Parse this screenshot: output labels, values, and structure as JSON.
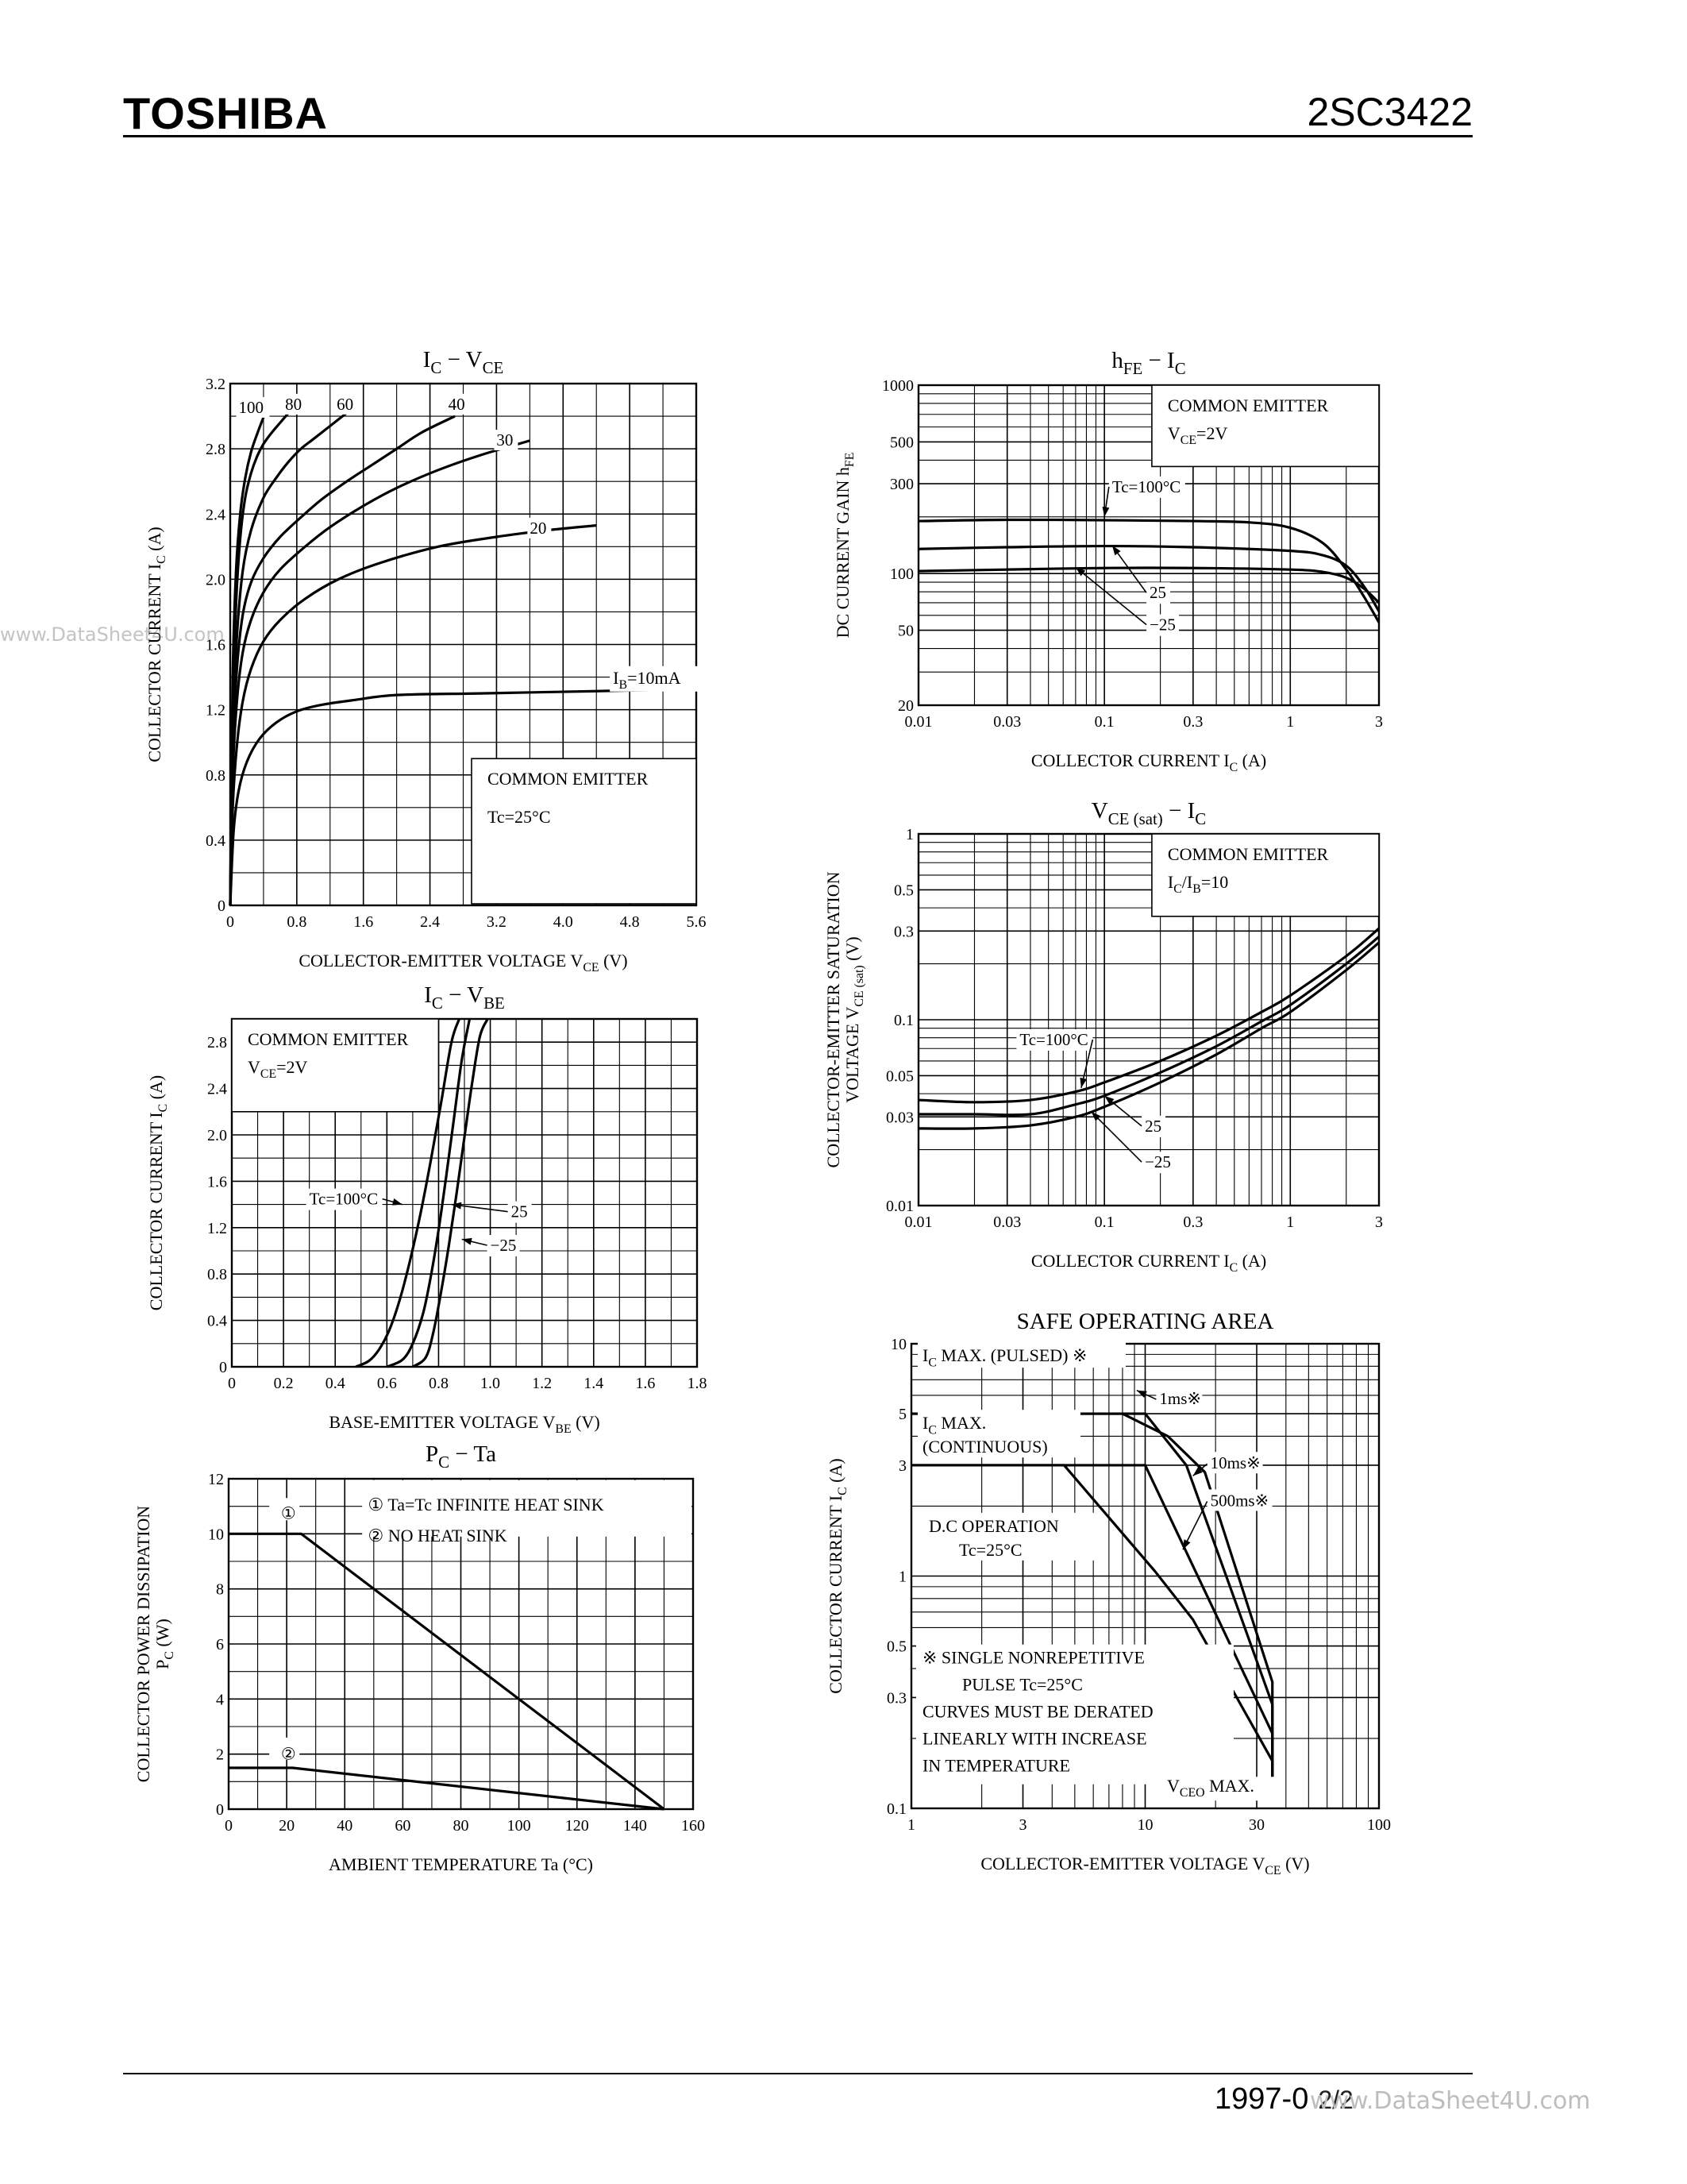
{
  "header": {
    "brand": "TOSHIBA",
    "part_number": "2SC3422"
  },
  "footer": {
    "date": "1997-0",
    "page": "2/2"
  },
  "watermark": {
    "left": "www.DataSheet4U.com",
    "bottom": "www.DataSheet4U.com"
  },
  "chart_data": [
    {
      "id": "ic_vce",
      "type": "line",
      "title_main": "I",
      "title_sub": "C",
      "title_mid": " − V",
      "title_sub2": "CE",
      "xlabel": "COLLECTOR-EMITTER VOLTAGE   V",
      "xlabel_sub": "CE",
      "xlabel_unit": "   (V)",
      "ylabel": "COLLECTOR CURRENT   I",
      "ylabel_sub": "C",
      "ylabel_unit": "   (A)",
      "x_scale": "linear",
      "y_scale": "linear",
      "xlim": [
        0,
        5.6
      ],
      "ylim": [
        0,
        3.2
      ],
      "xticks": [
        0,
        0.8,
        1.6,
        2.4,
        3.2,
        4.0,
        4.8,
        5.6
      ],
      "xtick_labels": [
        "0",
        "0.8",
        "1.6",
        "2.4",
        "3.2",
        "4.0",
        "4.8",
        "5.6"
      ],
      "yticks": [
        0,
        0.4,
        0.8,
        1.2,
        1.6,
        2.0,
        2.4,
        2.8,
        3.2
      ],
      "ytick_labels": [
        "0",
        "0.4",
        "0.8",
        "1.2",
        "1.6",
        "2.0",
        "2.4",
        "2.8",
        "3.2"
      ],
      "grid_minor_x": 0.4,
      "grid_minor_y": 0.2,
      "info_box": {
        "lines": [
          "COMMON EMITTER",
          "Tc=25°C"
        ],
        "corner": "bottom-right",
        "x0": 2.9,
        "y1": 0.9
      },
      "series": [
        {
          "name": "IB=10mA",
          "label": "I",
          "label_sub": "B",
          "label_rest": "=10mA",
          "label_at": [
            4.6,
            1.36
          ],
          "x": [
            0,
            0.04,
            0.1,
            0.2,
            0.35,
            0.55,
            0.8,
            1.1,
            1.5,
            2.0,
            3.0,
            4.0,
            5.0,
            5.6
          ],
          "y": [
            0,
            0.45,
            0.7,
            0.88,
            1.02,
            1.12,
            1.19,
            1.23,
            1.26,
            1.29,
            1.3,
            1.31,
            1.32,
            1.33
          ]
        },
        {
          "name": "20",
          "label": "20",
          "label_at": [
            3.6,
            2.28
          ],
          "x": [
            0,
            0.03,
            0.08,
            0.15,
            0.25,
            0.4,
            0.6,
            0.9,
            1.3,
            1.8,
            2.5,
            3.2,
            3.8,
            4.4
          ],
          "y": [
            0,
            0.6,
            0.98,
            1.25,
            1.45,
            1.62,
            1.75,
            1.88,
            2.0,
            2.1,
            2.2,
            2.26,
            2.3,
            2.33
          ]
        },
        {
          "name": "30",
          "label": "30",
          "label_at": [
            3.2,
            2.82
          ],
          "x": [
            0,
            0.03,
            0.08,
            0.15,
            0.25,
            0.4,
            0.6,
            0.9,
            1.2,
            1.6,
            2.0,
            2.5,
            3.0,
            3.6
          ],
          "y": [
            0,
            0.8,
            1.25,
            1.55,
            1.75,
            1.92,
            2.06,
            2.2,
            2.32,
            2.45,
            2.56,
            2.67,
            2.76,
            2.85
          ]
        },
        {
          "name": "40",
          "label": "40",
          "label_at": [
            2.62,
            3.04
          ],
          "x": [
            0,
            0.03,
            0.08,
            0.15,
            0.25,
            0.4,
            0.6,
            0.85,
            1.1,
            1.4,
            1.7,
            2.0,
            2.3,
            2.7
          ],
          "y": [
            0,
            0.95,
            1.45,
            1.78,
            1.98,
            2.13,
            2.26,
            2.38,
            2.49,
            2.6,
            2.7,
            2.8,
            2.9,
            3.0
          ]
        },
        {
          "name": "60",
          "label": "60",
          "label_at": [
            1.28,
            3.04
          ],
          "x": [
            0,
            0.03,
            0.08,
            0.15,
            0.25,
            0.4,
            0.55,
            0.7,
            0.85,
            1.0,
            1.2,
            1.4
          ],
          "y": [
            0,
            1.1,
            1.65,
            2.05,
            2.3,
            2.5,
            2.62,
            2.72,
            2.8,
            2.86,
            2.94,
            3.02
          ]
        },
        {
          "name": "80",
          "label": "80",
          "label_at": [
            0.66,
            3.04
          ],
          "x": [
            0,
            0.03,
            0.07,
            0.12,
            0.18,
            0.25,
            0.32,
            0.4,
            0.5,
            0.6,
            0.7
          ],
          "y": [
            0,
            1.2,
            1.85,
            2.25,
            2.5,
            2.65,
            2.75,
            2.83,
            2.9,
            2.96,
            3.02
          ]
        },
        {
          "name": "100",
          "label": "100",
          "label_at": [
            0.1,
            3.02
          ],
          "x": [
            0,
            0.03,
            0.07,
            0.12,
            0.18,
            0.25,
            0.33,
            0.42
          ],
          "y": [
            0,
            1.4,
            2.05,
            2.4,
            2.62,
            2.78,
            2.9,
            3.02
          ]
        }
      ]
    },
    {
      "id": "ic_vbe",
      "type": "line",
      "title_main": "I",
      "title_sub": "C",
      "title_mid": " − V",
      "title_sub2": "BE",
      "xlabel": "BASE-EMITTER VOLTAGE   V",
      "xlabel_sub": "BE",
      "xlabel_unit": "   (V)",
      "ylabel": "COLLECTOR CURRENT   I",
      "ylabel_sub": "C",
      "ylabel_unit": "   (A)",
      "x_scale": "linear",
      "y_scale": "linear",
      "xlim": [
        0,
        1.8
      ],
      "ylim": [
        0,
        3.0
      ],
      "xticks": [
        0,
        0.2,
        0.4,
        0.6,
        0.8,
        1.0,
        1.2,
        1.4,
        1.6,
        1.8
      ],
      "xtick_labels": [
        "0",
        "0.2",
        "0.4",
        "0.6",
        "0.8",
        "1.0",
        "1.2",
        "1.4",
        "1.6",
        "1.8"
      ],
      "yticks": [
        0,
        0.4,
        0.8,
        1.2,
        1.6,
        2.0,
        2.4,
        2.8
      ],
      "ytick_labels": [
        "0",
        "0.4",
        "0.8",
        "1.2",
        "1.6",
        "2.0",
        "2.4",
        "2.8"
      ],
      "grid_minor_x": 0.1,
      "grid_minor_y": 0.2,
      "info_box": {
        "lines": [
          "COMMON EMITTER",
          "V|CE|=2V"
        ],
        "corner": "top-left",
        "x1": 0.8,
        "y0": 2.2
      },
      "series": [
        {
          "name": "Tc=100°C",
          "x": [
            0.48,
            0.53,
            0.57,
            0.61,
            0.65,
            0.69,
            0.73,
            0.77,
            0.81,
            0.85,
            0.88
          ],
          "y": [
            0,
            0.05,
            0.15,
            0.32,
            0.58,
            0.92,
            1.32,
            1.78,
            2.28,
            2.8,
            3.0
          ]
        },
        {
          "name": "25",
          "x": [
            0.6,
            0.66,
            0.7,
            0.74,
            0.77,
            0.8,
            0.83,
            0.86,
            0.89,
            0.92
          ],
          "y": [
            0,
            0.06,
            0.2,
            0.46,
            0.78,
            1.18,
            1.65,
            2.15,
            2.65,
            3.0
          ]
        },
        {
          "name": "−25",
          "x": [
            0.7,
            0.75,
            0.78,
            0.81,
            0.84,
            0.87,
            0.9,
            0.93,
            0.96,
            0.99
          ],
          "y": [
            0,
            0.08,
            0.3,
            0.65,
            1.05,
            1.5,
            1.98,
            2.45,
            2.85,
            3.0
          ]
        }
      ],
      "annotations": [
        {
          "text": "Tc=100°C",
          "at": [
            0.3,
            1.4
          ],
          "arrow_to": [
            0.66,
            1.4
          ]
        },
        {
          "text": "25",
          "at": [
            1.08,
            1.29
          ],
          "arrow_to": [
            0.85,
            1.4
          ]
        },
        {
          "text": "−25",
          "at": [
            1.0,
            1.0
          ],
          "arrow_to": [
            0.89,
            1.1
          ]
        }
      ]
    },
    {
      "id": "pc_ta",
      "type": "line",
      "title_main": "P",
      "title_sub": "C",
      "title_mid": " − Ta",
      "xlabel": "AMBIENT TEMPERATURE   Ta   (°C)",
      "ylabel": "COLLECTOR POWER DISSIPATION",
      "ylabel2": "P",
      "ylabel2_sub": "C",
      "ylabel2_unit": "   (W)",
      "x_scale": "linear",
      "y_scale": "linear",
      "xlim": [
        0,
        160
      ],
      "ylim": [
        0,
        12
      ],
      "xticks": [
        0,
        20,
        40,
        60,
        80,
        100,
        120,
        140,
        160
      ],
      "xtick_labels": [
        "0",
        "20",
        "40",
        "60",
        "80",
        "100",
        "120",
        "140",
        "160"
      ],
      "yticks": [
        0,
        2,
        4,
        6,
        8,
        10,
        12
      ],
      "ytick_labels": [
        "0",
        "2",
        "4",
        "6",
        "8",
        "10",
        "12"
      ],
      "grid_minor_x": 10,
      "grid_minor_y": 1,
      "legend": [
        "①   Ta=Tc INFINITE HEAT SINK",
        "②   NO HEAT SINK"
      ],
      "series": [
        {
          "name": "①",
          "x": [
            0,
            25,
            150
          ],
          "y": [
            10,
            10,
            0
          ]
        },
        {
          "name": "②",
          "x": [
            0,
            22,
            150
          ],
          "y": [
            1.5,
            1.5,
            0
          ]
        }
      ]
    },
    {
      "id": "hfe_ic",
      "type": "line",
      "title_main": "h",
      "title_sub": "FE",
      "title_mid": " − I",
      "title_sub2": "C",
      "xlabel": "COLLECTOR CURRENT   I",
      "xlabel_sub": "C",
      "xlabel_unit": "   (A)",
      "ylabel": "DC CURRENT GAIN   h",
      "ylabel_sub": "FE",
      "x_scale": "log",
      "y_scale": "log",
      "xlim": [
        0.01,
        3
      ],
      "ylim": [
        20,
        1000
      ],
      "xticks": [
        0.01,
        0.03,
        0.1,
        0.3,
        1,
        3
      ],
      "xtick_labels": [
        "0.01",
        "0.03",
        "0.1",
        "0.3",
        "1",
        "3"
      ],
      "yticks": [
        20,
        50,
        100,
        300,
        500,
        1000
      ],
      "ytick_labels": [
        "20",
        "50",
        "100",
        "300",
        "500",
        "1000"
      ],
      "info_box": {
        "lines": [
          "COMMON EMITTER",
          "V|CE|=2V"
        ],
        "corner": "top-right",
        "x0": 0.18,
        "y0": 370
      },
      "series": [
        {
          "name": "Tc=100°C",
          "x": [
            0.01,
            0.03,
            0.1,
            0.3,
            0.6,
            1.0,
            1.5,
            2.0,
            2.5,
            3.0
          ],
          "y": [
            190,
            193,
            192,
            190,
            187,
            175,
            145,
            105,
            75,
            55
          ]
        },
        {
          "name": "25",
          "x": [
            0.01,
            0.03,
            0.1,
            0.3,
            1.0,
            1.5,
            2.0,
            2.5,
            3.0
          ],
          "y": [
            135,
            138,
            140,
            138,
            132,
            125,
            110,
            85,
            63
          ]
        },
        {
          "name": "−25",
          "x": [
            0.01,
            0.03,
            0.1,
            0.3,
            1.0,
            1.5,
            2.0,
            2.5,
            3.0
          ],
          "y": [
            103,
            105,
            107,
            107,
            105,
            102,
            95,
            83,
            70
          ]
        }
      ],
      "annotations": [
        {
          "text": "Tc=100°C",
          "at": [
            0.11,
            270
          ],
          "arrow_to": [
            0.1,
            200
          ]
        },
        {
          "text": "25",
          "at": [
            0.175,
            74
          ],
          "arrow_to": [
            0.11,
            141
          ]
        },
        {
          "text": "−25",
          "at": [
            0.175,
            50
          ],
          "arrow_to": [
            0.07,
            108
          ]
        }
      ]
    },
    {
      "id": "vcesat_ic",
      "type": "line",
      "title_main": "V",
      "title_sub": "CE (sat)",
      "title_mid": " − I",
      "title_sub2": "C",
      "xlabel": "COLLECTOR CURRENT   I",
      "xlabel_sub": "C",
      "xlabel_unit": "   (A)",
      "ylabel": "COLLECTOR-EMITTER SATURATION",
      "ylabel2": "VOLTAGE   V",
      "ylabel2_sub": "CE (sat)",
      "ylabel2_unit": "   (V)",
      "x_scale": "log",
      "y_scale": "log",
      "xlim": [
        0.01,
        3
      ],
      "ylim": [
        0.01,
        1
      ],
      "xticks": [
        0.01,
        0.03,
        0.1,
        0.3,
        1,
        3
      ],
      "xtick_labels": [
        "0.01",
        "0.03",
        "0.1",
        "0.3",
        "1",
        "3"
      ],
      "yticks": [
        0.01,
        0.03,
        0.05,
        0.1,
        0.3,
        0.5,
        1
      ],
      "ytick_labels": [
        "0.01",
        "0.03",
        "0.05",
        "0.1",
        "0.3",
        "0.5",
        "1"
      ],
      "info_box": {
        "lines": [
          "COMMON EMITTER",
          "I|C|/I|B|=10"
        ],
        "corner": "top-right",
        "x0": 0.18,
        "y0": 0.36
      },
      "series": [
        {
          "name": "Tc=100°C",
          "x": [
            0.01,
            0.02,
            0.04,
            0.07,
            0.1,
            0.2,
            0.4,
            0.7,
            1.0,
            2.0,
            3.0
          ],
          "y": [
            0.037,
            0.036,
            0.037,
            0.041,
            0.046,
            0.06,
            0.082,
            0.11,
            0.135,
            0.22,
            0.31
          ]
        },
        {
          "name": "25",
          "x": [
            0.01,
            0.02,
            0.04,
            0.07,
            0.1,
            0.2,
            0.4,
            0.7,
            1.0,
            2.0,
            3.0
          ],
          "y": [
            0.031,
            0.031,
            0.031,
            0.035,
            0.039,
            0.052,
            0.072,
            0.098,
            0.12,
            0.2,
            0.28
          ]
        },
        {
          "name": "−25",
          "x": [
            0.01,
            0.02,
            0.04,
            0.07,
            0.1,
            0.2,
            0.4,
            0.7,
            1.0,
            2.0,
            3.0
          ],
          "y": [
            0.026,
            0.026,
            0.027,
            0.03,
            0.034,
            0.046,
            0.065,
            0.09,
            0.11,
            0.185,
            0.26
          ]
        }
      ],
      "annotations": [
        {
          "text": "Tc=100°C",
          "at": [
            0.035,
            0.073
          ],
          "arrow_to": [
            0.075,
            0.043
          ]
        },
        {
          "text": "25",
          "at": [
            0.165,
            0.025
          ],
          "arrow_to": [
            0.1,
            0.039
          ]
        },
        {
          "text": "−25",
          "at": [
            0.165,
            0.016
          ],
          "arrow_to": [
            0.085,
            0.032
          ]
        }
      ]
    },
    {
      "id": "soa",
      "type": "line",
      "title": "SAFE OPERATING AREA",
      "xlabel": "COLLECTOR-EMITTER VOLTAGE   V",
      "xlabel_sub": "CE",
      "xlabel_unit": "   (V)",
      "ylabel": "COLLECTOR CURRENT   I",
      "ylabel_sub": "C",
      "ylabel_unit": "   (A)",
      "x_scale": "log",
      "y_scale": "log",
      "xlim": [
        1,
        100
      ],
      "ylim": [
        0.1,
        10
      ],
      "xticks": [
        1,
        3,
        10,
        30,
        100
      ],
      "xtick_labels": [
        "1",
        "3",
        "10",
        "30",
        "100"
      ],
      "yticks": [
        0.1,
        0.3,
        0.5,
        1,
        3,
        5,
        10
      ],
      "ytick_labels": [
        "0.1",
        "0.3",
        "0.5",
        "1",
        "3",
        "5",
        "10"
      ],
      "series": [
        {
          "name": "1ms※",
          "x": [
            1,
            8,
            12.5,
            18,
            35,
            35
          ],
          "y": [
            5,
            5,
            4,
            2.8,
            0.35,
            0.13
          ]
        },
        {
          "name": "10ms※",
          "x": [
            1,
            10,
            15,
            35,
            35
          ],
          "y": [
            5,
            5,
            3,
            0.28,
            0.13
          ]
        },
        {
          "name": "500ms※",
          "x": [
            1,
            10,
            35,
            35
          ],
          "y": [
            3,
            3,
            0.21,
            0.13
          ]
        },
        {
          "name": "D.C OPERATION",
          "x": [
            1,
            4.5,
            11,
            16,
            35,
            35
          ],
          "y": [
            3,
            3,
            1.05,
            0.65,
            0.16,
            0.13
          ]
        }
      ],
      "labels": {
        "ic_pulsed": "I",
        "ic_pulsed_sub": "C",
        "ic_pulsed_rest": " MAX. (PULSED) ※",
        "ic_cont1": "I",
        "ic_cont1_sub": "C",
        "ic_cont1_rest": " MAX.",
        "ic_cont2": "(CONTINUOUS)",
        "dc1": "D.C OPERATION",
        "dc2": "Tc=25°C",
        "note1": "※   SINGLE NONREPETITIVE",
        "note2": "PULSE  Tc=25°C",
        "note3": "CURVES MUST BE DERATED",
        "note4": "LINEARLY WITH INCREASE",
        "note5": "IN TEMPERATURE",
        "vceo": "V",
        "vceo_sub": "CEO",
        "vceo_rest": " MAX.",
        "l1ms": "1ms※",
        "l10ms": "10ms※",
        "l500ms": "500ms※"
      }
    }
  ]
}
